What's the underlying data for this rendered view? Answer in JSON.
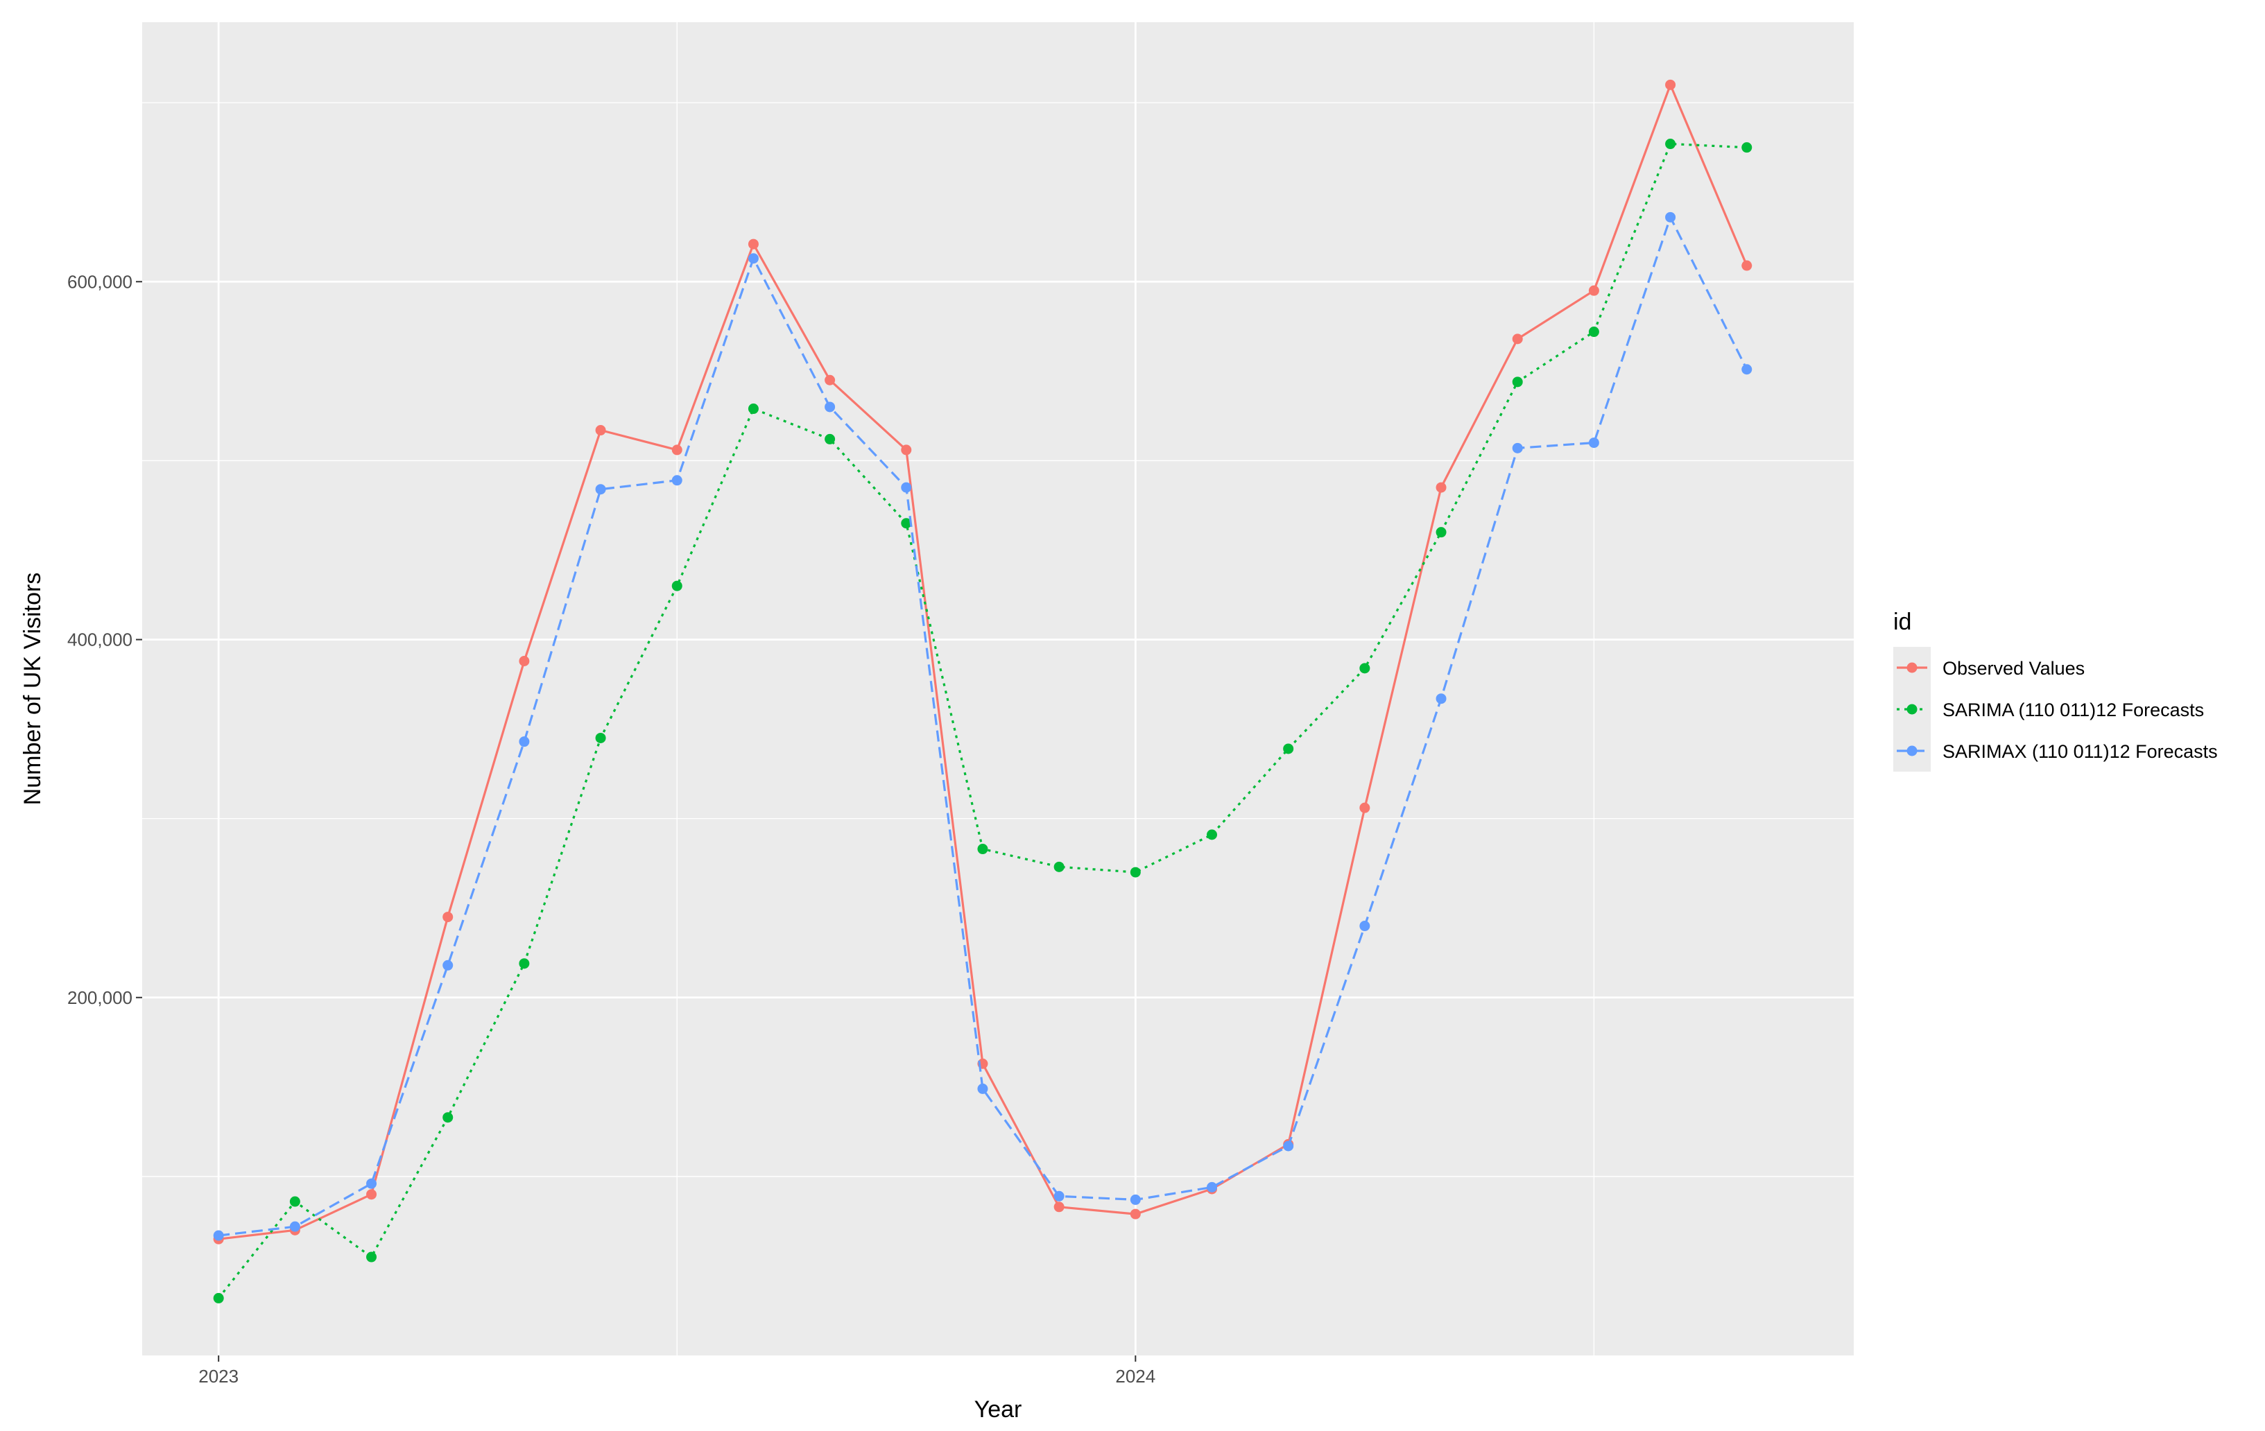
{
  "chart_data": {
    "type": "line",
    "xlabel": "Year",
    "ylabel": "Number of UK Visitors",
    "x_ticks": [
      {
        "label": "2023",
        "t": 0
      },
      {
        "label": "2024",
        "t": 12
      }
    ],
    "x_range": [
      -1,
      21.4
    ],
    "y_ticks": [
      {
        "label": "200,000",
        "value": 200000
      },
      {
        "label": "400,000",
        "value": 400000
      },
      {
        "label": "600,000",
        "value": 600000
      }
    ],
    "ylim": [
      0,
      745000
    ],
    "grid": true,
    "legend": {
      "title": "id",
      "position": "right"
    },
    "x": [
      "2023-01",
      "2023-02",
      "2023-03",
      "2023-04",
      "2023-05",
      "2023-06",
      "2023-07",
      "2023-08",
      "2023-09",
      "2023-10",
      "2023-11",
      "2023-12",
      "2024-01",
      "2024-02",
      "2024-03",
      "2024-04",
      "2024-05",
      "2024-06",
      "2024-07",
      "2024-08",
      "2024-09"
    ],
    "series": [
      {
        "name": "Observed Values",
        "color": "#F8766D",
        "dash": "solid",
        "values": [
          65000,
          70000,
          90000,
          245000,
          388000,
          517000,
          506000,
          621000,
          545000,
          506000,
          163000,
          83000,
          79000,
          93000,
          118000,
          306000,
          485000,
          568000,
          595000,
          710000,
          609000
        ]
      },
      {
        "name": "SARIMA (110 011)12 Forecasts",
        "color": "#00BA38",
        "dash": "dotted",
        "values": [
          32000,
          86000,
          55000,
          133000,
          219000,
          345000,
          430000,
          529000,
          512000,
          465000,
          283000,
          273000,
          270000,
          291000,
          339000,
          384000,
          460000,
          544000,
          572000,
          677000,
          675000
        ]
      },
      {
        "name": "SARIMAX (110 011)12 Forecasts",
        "color": "#619CFF",
        "dash": "dashed",
        "values": [
          67000,
          72000,
          96000,
          218000,
          343000,
          484000,
          489000,
          613000,
          530000,
          485000,
          149000,
          89000,
          87000,
          94000,
          117000,
          240000,
          367000,
          507000,
          510000,
          636000,
          551000
        ]
      }
    ]
  }
}
